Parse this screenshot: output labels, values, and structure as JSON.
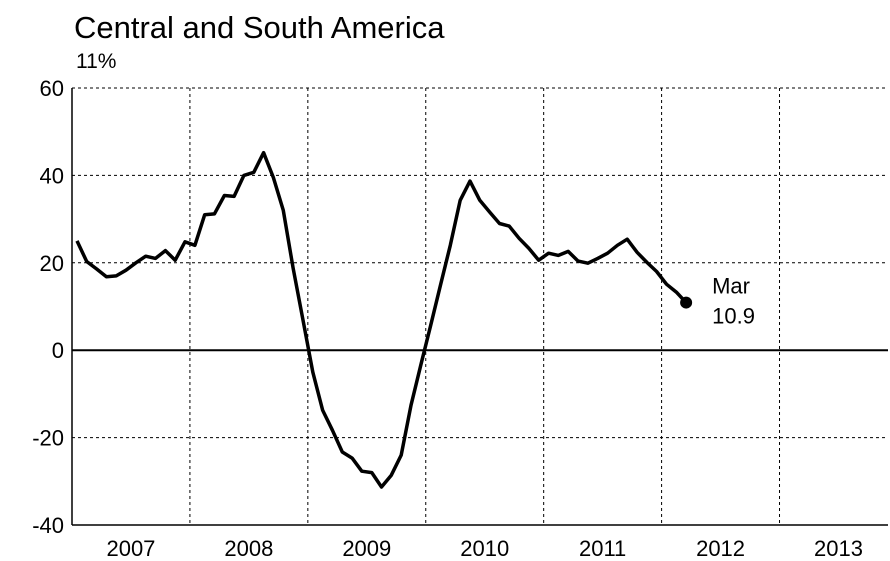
{
  "chart_data": {
    "type": "line",
    "title": "Central and South America",
    "subtitle": "11%",
    "x": [
      2007.042,
      2007.125,
      2007.208,
      2007.292,
      2007.375,
      2007.458,
      2007.542,
      2007.625,
      2007.708,
      2007.792,
      2007.875,
      2007.958,
      2008.042,
      2008.125,
      2008.208,
      2008.292,
      2008.375,
      2008.458,
      2008.542,
      2008.625,
      2008.708,
      2008.792,
      2008.875,
      2008.958,
      2009.042,
      2009.125,
      2009.208,
      2009.292,
      2009.375,
      2009.458,
      2009.542,
      2009.625,
      2009.708,
      2009.792,
      2009.875,
      2009.958,
      2010.042,
      2010.125,
      2010.208,
      2010.292,
      2010.375,
      2010.458,
      2010.542,
      2010.625,
      2010.708,
      2010.792,
      2010.875,
      2010.958,
      2011.042,
      2011.125,
      2011.208,
      2011.292,
      2011.375,
      2011.458,
      2011.542,
      2011.625,
      2011.708,
      2011.792,
      2011.875,
      2011.958,
      2012.042,
      2012.125,
      2012.208
    ],
    "values": [
      25,
      20.3,
      18.6,
      16.8,
      17,
      18.3,
      20,
      21.5,
      21,
      22.8,
      20.6,
      24.8,
      24,
      31,
      31.2,
      35.4,
      35.2,
      40,
      40.7,
      45.2,
      39.5,
      32,
      18.8,
      7,
      -5,
      -13.7,
      -18.3,
      -23.3,
      -24.7,
      -27.7,
      -28,
      -31.3,
      -28.6,
      -24,
      -12.6,
      -3.4,
      5.7,
      14.9,
      24,
      34.3,
      38.7,
      34.3,
      31.6,
      29,
      28.4,
      25.6,
      23.3,
      20.6,
      22.2,
      21.7,
      22.6,
      20.4,
      19.9,
      21,
      22.2,
      24,
      25.4,
      22.4,
      20.1,
      18,
      15.1,
      13.3,
      10.9
    ],
    "color": "#000000",
    "end_label": "Mar",
    "xlim": [
      2007,
      2013.92
    ],
    "xticks": [
      {
        "value": 2007.5,
        "label": "2007"
      },
      {
        "value": 2008.5,
        "label": "2008"
      },
      {
        "value": 2009.5,
        "label": "2009"
      },
      {
        "value": 2010.5,
        "label": "2010"
      },
      {
        "value": 2011.5,
        "label": "2011"
      },
      {
        "value": 2012.5,
        "label": "2012"
      },
      {
        "value": 2013.5,
        "label": "2013"
      }
    ],
    "x_grid": [
      2008,
      2009,
      2010,
      2011,
      2012,
      2013
    ],
    "ylim": [
      -40,
      60
    ],
    "yticks": [
      60,
      40,
      20,
      0,
      -20,
      -40
    ],
    "grid": true
  }
}
